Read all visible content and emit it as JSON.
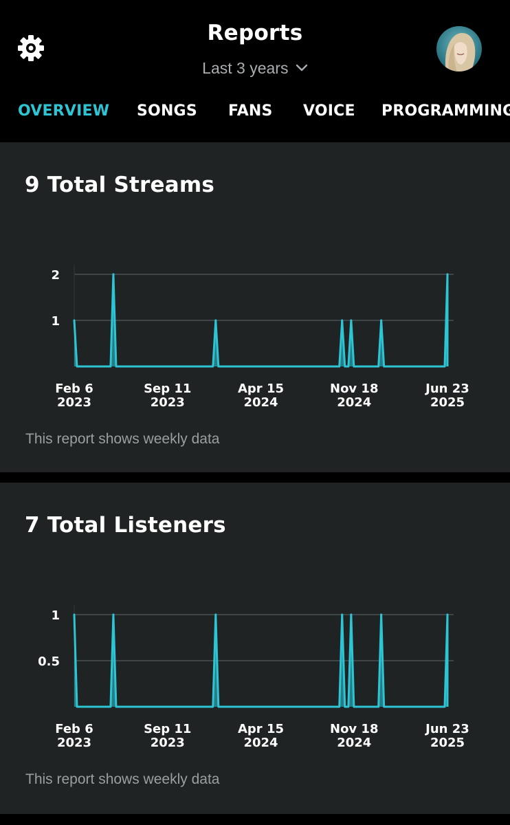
{
  "header": {
    "title": "Reports",
    "range_label": "Last 3 years",
    "settings_icon": "gear-icon",
    "dropdown_icon": "chevron-down-icon",
    "avatar_icon": "user-avatar"
  },
  "tabs": [
    {
      "label": "OVERVIEW",
      "active": true
    },
    {
      "label": "SONGS",
      "active": false
    },
    {
      "label": "FANS",
      "active": false
    },
    {
      "label": "VOICE",
      "active": false
    },
    {
      "label": "PROGRAMMING",
      "active": false
    }
  ],
  "colors": {
    "accent": "#2dc4d4",
    "background": "#000000",
    "card": "#1f2324",
    "muted": "#9a9fa1"
  },
  "streams": {
    "title": "9 Total Streams",
    "note": "This report shows weekly data"
  },
  "listeners": {
    "title": "7 Total Listeners",
    "note": "This report shows weekly data"
  },
  "chart_data": [
    {
      "type": "area",
      "title": "9 Total Streams",
      "xlabel": "",
      "ylabel": "",
      "x_ticks": [
        {
          "line1": "Feb 6",
          "line2": "2023"
        },
        {
          "line1": "Sep 11",
          "line2": "2023"
        },
        {
          "line1": "Apr 15",
          "line2": "2024"
        },
        {
          "line1": "Nov 18",
          "line2": "2024"
        },
        {
          "line1": "Jun 23",
          "line2": "2025"
        }
      ],
      "x_range": [
        "2023-02-06",
        "2025-06-23"
      ],
      "ylim": [
        0,
        2
      ],
      "y_ticks": [
        "1",
        "2"
      ],
      "grid": true,
      "series": [
        {
          "x": [
            "2023-02-06",
            "2023-05-08",
            "2024-01-01",
            "2024-10-21",
            "2024-11-11",
            "2025-01-20",
            "2025-06-23"
          ],
          "values": [
            1,
            2,
            1,
            1,
            1,
            1,
            2
          ]
        }
      ]
    },
    {
      "type": "area",
      "title": "7 Total Listeners",
      "xlabel": "",
      "ylabel": "",
      "x_ticks": [
        {
          "line1": "Feb 6",
          "line2": "2023"
        },
        {
          "line1": "Sep 11",
          "line2": "2023"
        },
        {
          "line1": "Apr 15",
          "line2": "2024"
        },
        {
          "line1": "Nov 18",
          "line2": "2024"
        },
        {
          "line1": "Jun 23",
          "line2": "2025"
        }
      ],
      "x_range": [
        "2023-02-06",
        "2025-06-23"
      ],
      "ylim": [
        0,
        1
      ],
      "y_ticks": [
        "0.5",
        "1"
      ],
      "grid": true,
      "series": [
        {
          "x": [
            "2023-02-06",
            "2023-05-08",
            "2024-01-01",
            "2024-10-21",
            "2024-11-11",
            "2025-01-20",
            "2025-06-23"
          ],
          "values": [
            1,
            1,
            1,
            1,
            1,
            1,
            1
          ]
        }
      ]
    }
  ]
}
